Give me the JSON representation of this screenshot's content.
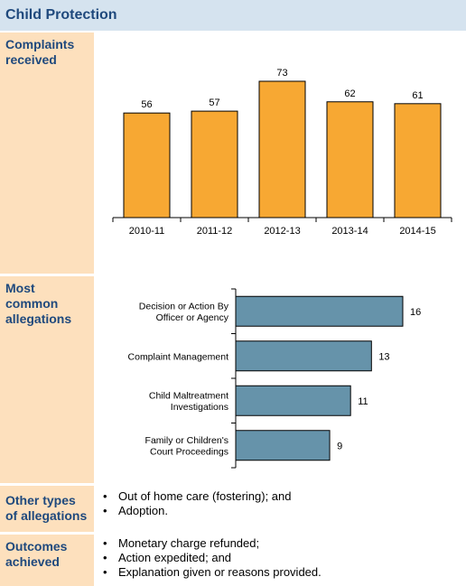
{
  "page_title": "Child Protection",
  "sections": {
    "complaints": {
      "label": "Complaints received"
    },
    "allegations": {
      "label": "Most common allegations"
    },
    "other": {
      "label": "Other types of allegations",
      "items": [
        "Out of home care (fostering); and",
        "Adoption."
      ]
    },
    "outcomes": {
      "label": "Outcomes achieved",
      "items": [
        "Monetary charge refunded;",
        "Action expedited; and",
        "Explanation given or reasons provided."
      ]
    }
  },
  "chart_data": [
    {
      "type": "bar",
      "categories": [
        "2010-11",
        "2011-12",
        "2012-13",
        "2013-14",
        "2014-15"
      ],
      "values": [
        56,
        57,
        73,
        62,
        61
      ],
      "title": "",
      "xlabel": "",
      "ylabel": "",
      "ylim": [
        0,
        73
      ],
      "bar_color": "#f7a833",
      "grid": false
    },
    {
      "type": "bar",
      "orientation": "horizontal",
      "categories": [
        [
          "Decision or Action By",
          "Officer or Agency"
        ],
        [
          "Complaint Management"
        ],
        [
          "Child Maltreatment",
          "Investigations"
        ],
        [
          "Family or Children's",
          "Court Proceedings"
        ]
      ],
      "values": [
        16,
        13,
        11,
        9
      ],
      "title": "",
      "xlabel": "",
      "ylabel": "",
      "xlim": [
        0,
        16
      ],
      "bar_color": "#6693aa",
      "grid": false
    }
  ],
  "colors": {
    "header_bg": "#d5e3ef",
    "label_bg": "#fde0bd",
    "title_text": "#1f497d"
  }
}
